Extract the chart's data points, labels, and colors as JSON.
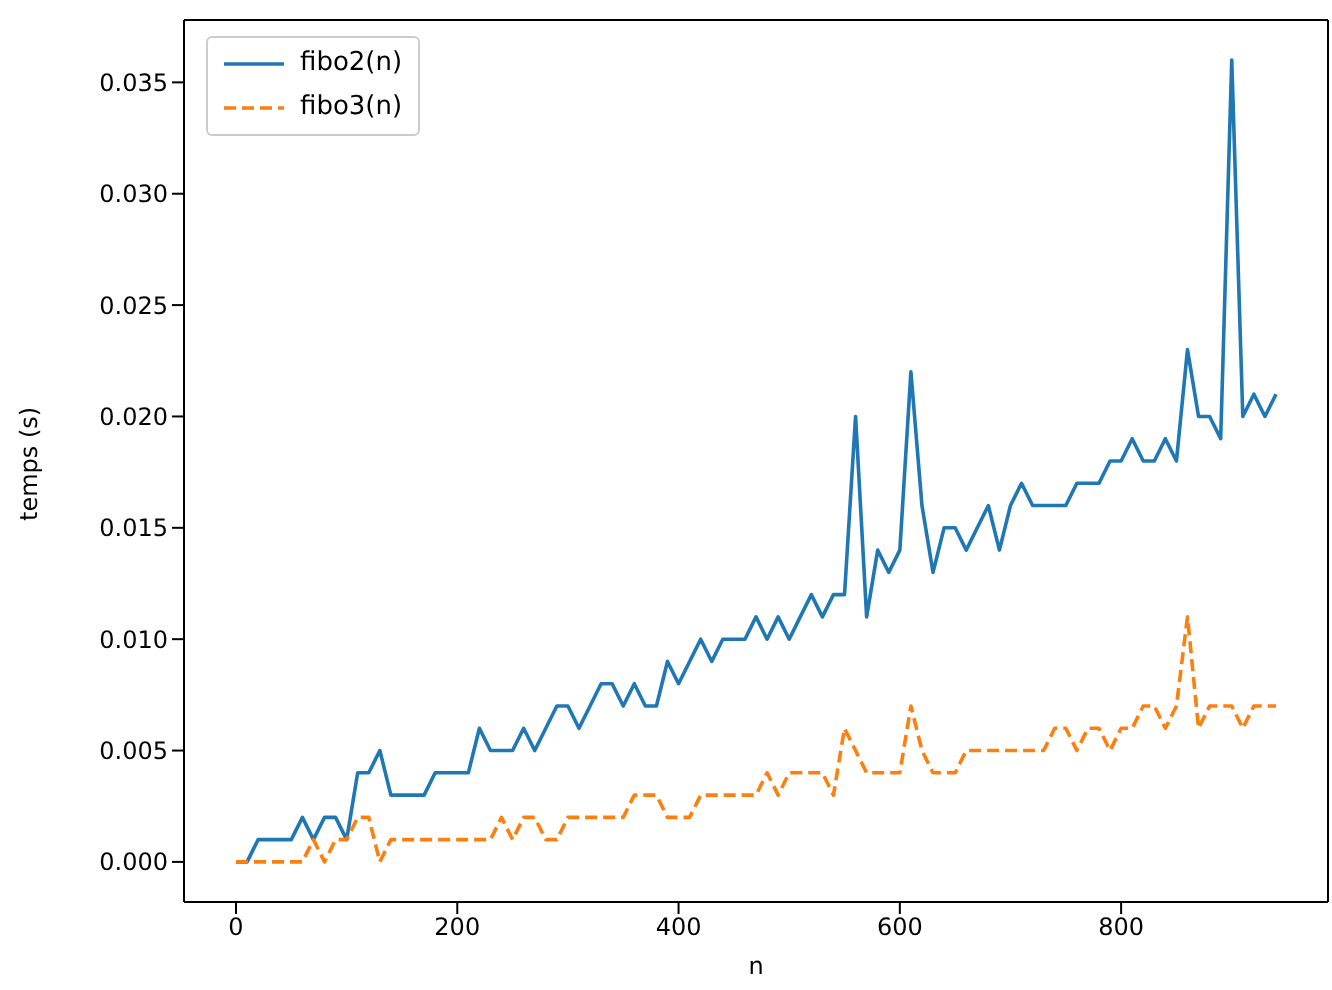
{
  "chart_data": {
    "type": "line",
    "xlabel": "n",
    "ylabel": "temps (s)",
    "x": [
      0,
      10,
      20,
      30,
      40,
      50,
      60,
      70,
      80,
      90,
      100,
      110,
      120,
      130,
      140,
      150,
      160,
      170,
      180,
      190,
      200,
      210,
      220,
      230,
      240,
      250,
      260,
      270,
      280,
      290,
      300,
      310,
      320,
      330,
      340,
      350,
      360,
      370,
      380,
      390,
      400,
      410,
      420,
      430,
      440,
      450,
      460,
      470,
      480,
      490,
      500,
      510,
      520,
      530,
      540,
      550,
      560,
      570,
      580,
      590,
      600,
      610,
      620,
      630,
      640,
      650,
      660,
      670,
      680,
      690,
      700,
      710,
      720,
      730,
      740,
      750,
      760,
      770,
      780,
      790,
      800,
      810,
      820,
      830,
      840,
      850,
      860,
      870,
      880,
      890,
      900,
      910,
      920,
      930,
      940
    ],
    "series": [
      {
        "name": "fibo2(n)",
        "color": "#1f77b4",
        "line_style": "solid",
        "values": [
          0,
          0,
          0.001,
          0.001,
          0.001,
          0.001,
          0.002,
          0.001,
          0.002,
          0.002,
          0.001,
          0.004,
          0.004,
          0.005,
          0.003,
          0.003,
          0.003,
          0.003,
          0.004,
          0.004,
          0.004,
          0.004,
          0.006,
          0.005,
          0.005,
          0.005,
          0.006,
          0.005,
          0.006,
          0.007,
          0.007,
          0.006,
          0.007,
          0.008,
          0.008,
          0.007,
          0.008,
          0.007,
          0.007,
          0.009,
          0.008,
          0.009,
          0.01,
          0.009,
          0.01,
          0.01,
          0.01,
          0.011,
          0.01,
          0.011,
          0.01,
          0.011,
          0.012,
          0.011,
          0.012,
          0.012,
          0.02,
          0.011,
          0.014,
          0.013,
          0.014,
          0.022,
          0.016,
          0.013,
          0.015,
          0.015,
          0.014,
          0.015,
          0.016,
          0.014,
          0.016,
          0.017,
          0.016,
          0.016,
          0.016,
          0.016,
          0.017,
          0.017,
          0.017,
          0.018,
          0.018,
          0.019,
          0.018,
          0.018,
          0.019,
          0.018,
          0.023,
          0.02,
          0.02,
          0.019,
          0.036,
          0.02,
          0.021,
          0.02,
          0.021
        ]
      },
      {
        "name": "fibo3(n)",
        "color": "#ff7f0e",
        "line_style": "dashed",
        "values": [
          0,
          0,
          0,
          0,
          0,
          0,
          0,
          0.001,
          0,
          0.001,
          0.001,
          0.002,
          0.002,
          0,
          0.001,
          0.001,
          0.001,
          0.001,
          0.001,
          0.001,
          0.001,
          0.001,
          0.001,
          0.001,
          0.002,
          0.001,
          0.002,
          0.002,
          0.001,
          0.001,
          0.002,
          0.002,
          0.002,
          0.002,
          0.002,
          0.002,
          0.003,
          0.003,
          0.003,
          0.002,
          0.002,
          0.002,
          0.003,
          0.003,
          0.003,
          0.003,
          0.003,
          0.003,
          0.004,
          0.003,
          0.004,
          0.004,
          0.004,
          0.004,
          0.003,
          0.006,
          0.005,
          0.004,
          0.004,
          0.004,
          0.004,
          0.007,
          0.005,
          0.004,
          0.004,
          0.004,
          0.005,
          0.005,
          0.005,
          0.005,
          0.005,
          0.005,
          0.005,
          0.005,
          0.006,
          0.006,
          0.005,
          0.006,
          0.006,
          0.005,
          0.006,
          0.006,
          0.007,
          0.007,
          0.006,
          0.007,
          0.011,
          0.006,
          0.007,
          0.007,
          0.007,
          0.006,
          0.007,
          0.007,
          0.007
        ]
      }
    ],
    "xlim": [
      -47,
      987
    ],
    "xticks": [
      0,
      200,
      400,
      600,
      800
    ],
    "ylim": [
      -0.0018,
      0.0378
    ],
    "yticks": [
      {
        "value": 0,
        "label": "0.000"
      },
      {
        "value": 0.005,
        "label": "0.005"
      },
      {
        "value": 0.01,
        "label": "0.010"
      },
      {
        "value": 0.015,
        "label": "0.015"
      },
      {
        "value": 0.02,
        "label": "0.020"
      },
      {
        "value": 0.025,
        "label": "0.025"
      },
      {
        "value": 0.03,
        "label": "0.030"
      },
      {
        "value": 0.035,
        "label": "0.035"
      }
    ],
    "grid": false,
    "legend": "top left",
    "marker": "none"
  }
}
